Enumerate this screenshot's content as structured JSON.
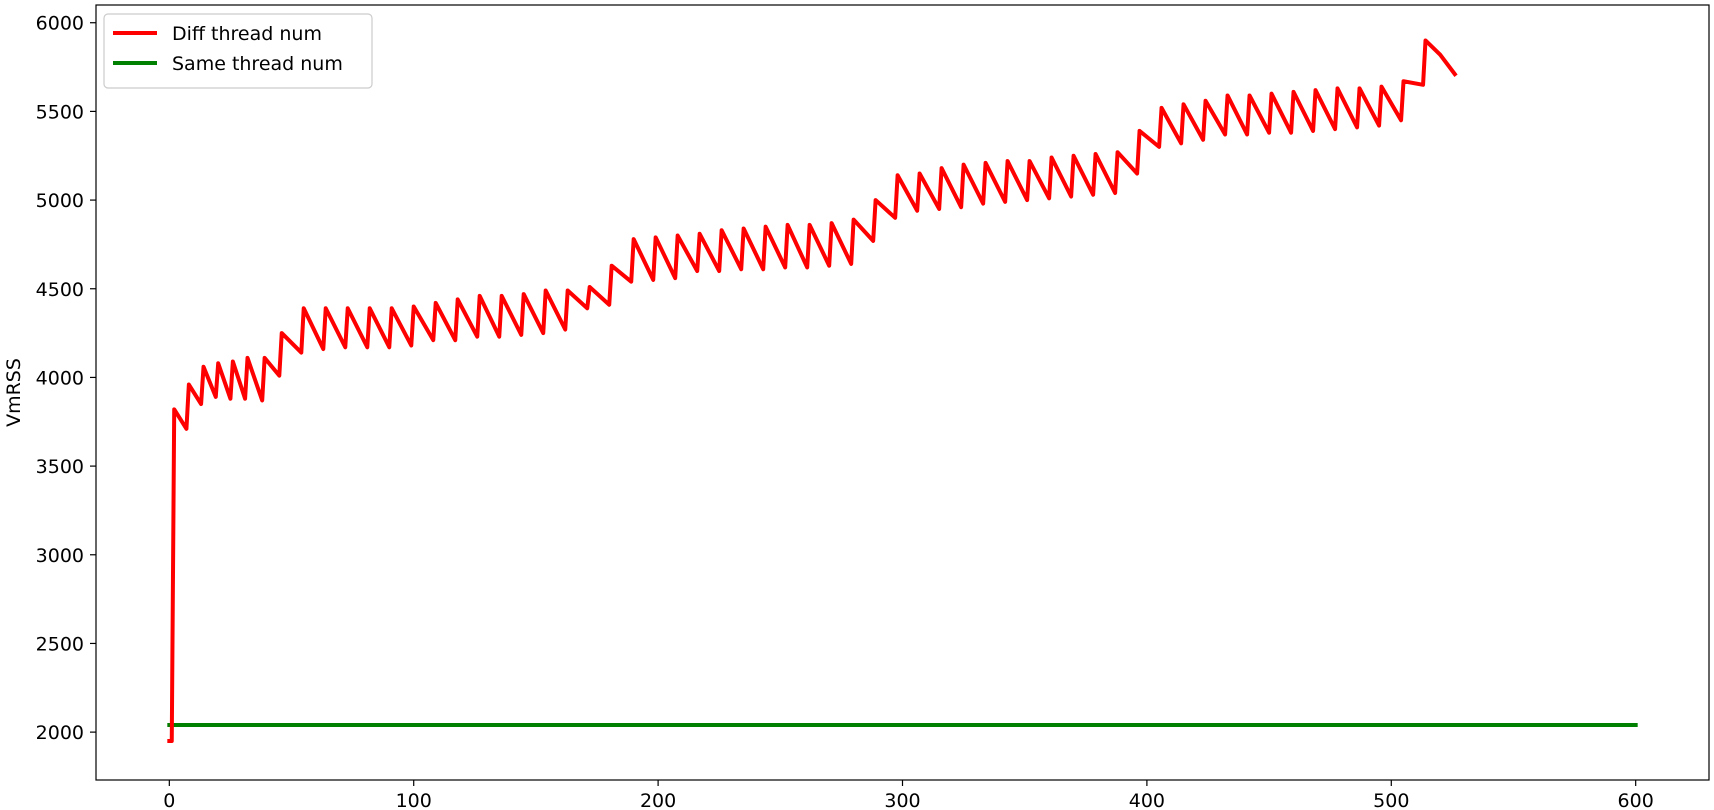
{
  "chart_data": {
    "type": "line",
    "title": "",
    "xlabel": "",
    "ylabel": "VmRSS",
    "xlim": [
      -30,
      630
    ],
    "ylim": [
      1730,
      6100
    ],
    "xticks": [
      0,
      100,
      200,
      300,
      400,
      500,
      600
    ],
    "yticks": [
      2000,
      2500,
      3000,
      3500,
      4000,
      4500,
      5000,
      5500,
      6000
    ],
    "grid": false,
    "legend_position": "top-left",
    "series": [
      {
        "name": "Diff thread num",
        "color": "#ff0000",
        "points": [
          [
            0,
            1950
          ],
          [
            1,
            1950
          ],
          [
            2,
            3820
          ],
          [
            7,
            3710
          ],
          [
            8,
            3960
          ],
          [
            13,
            3850
          ],
          [
            14,
            4060
          ],
          [
            19,
            3890
          ],
          [
            20,
            4080
          ],
          [
            25,
            3880
          ],
          [
            26,
            4090
          ],
          [
            31,
            3880
          ],
          [
            32,
            4110
          ],
          [
            38,
            3870
          ],
          [
            39,
            4110
          ],
          [
            45,
            4010
          ],
          [
            46,
            4250
          ],
          [
            54,
            4140
          ],
          [
            55,
            4390
          ],
          [
            63,
            4160
          ],
          [
            64,
            4390
          ],
          [
            72,
            4170
          ],
          [
            73,
            4390
          ],
          [
            81,
            4170
          ],
          [
            82,
            4390
          ],
          [
            90,
            4170
          ],
          [
            91,
            4390
          ],
          [
            99,
            4180
          ],
          [
            100,
            4400
          ],
          [
            108,
            4210
          ],
          [
            109,
            4420
          ],
          [
            117,
            4210
          ],
          [
            118,
            4440
          ],
          [
            126,
            4230
          ],
          [
            127,
            4460
          ],
          [
            135,
            4230
          ],
          [
            136,
            4460
          ],
          [
            144,
            4240
          ],
          [
            145,
            4470
          ],
          [
            153,
            4250
          ],
          [
            154,
            4490
          ],
          [
            162,
            4270
          ],
          [
            163,
            4490
          ],
          [
            171,
            4390
          ],
          [
            172,
            4510
          ],
          [
            180,
            4410
          ],
          [
            181,
            4630
          ],
          [
            189,
            4540
          ],
          [
            190,
            4780
          ],
          [
            198,
            4550
          ],
          [
            199,
            4790
          ],
          [
            207,
            4560
          ],
          [
            208,
            4800
          ],
          [
            216,
            4600
          ],
          [
            217,
            4810
          ],
          [
            225,
            4600
          ],
          [
            226,
            4830
          ],
          [
            234,
            4610
          ],
          [
            235,
            4840
          ],
          [
            243,
            4610
          ],
          [
            244,
            4850
          ],
          [
            252,
            4620
          ],
          [
            253,
            4860
          ],
          [
            261,
            4620
          ],
          [
            262,
            4860
          ],
          [
            270,
            4630
          ],
          [
            271,
            4870
          ],
          [
            279,
            4640
          ],
          [
            280,
            4890
          ],
          [
            288,
            4770
          ],
          [
            289,
            5000
          ],
          [
            297,
            4900
          ],
          [
            298,
            5140
          ],
          [
            306,
            4940
          ],
          [
            307,
            5150
          ],
          [
            315,
            4950
          ],
          [
            316,
            5180
          ],
          [
            324,
            4960
          ],
          [
            325,
            5200
          ],
          [
            333,
            4980
          ],
          [
            334,
            5210
          ],
          [
            342,
            4990
          ],
          [
            343,
            5220
          ],
          [
            351,
            5000
          ],
          [
            352,
            5220
          ],
          [
            360,
            5010
          ],
          [
            361,
            5240
          ],
          [
            369,
            5020
          ],
          [
            370,
            5250
          ],
          [
            378,
            5030
          ],
          [
            379,
            5260
          ],
          [
            387,
            5040
          ],
          [
            388,
            5270
          ],
          [
            396,
            5150
          ],
          [
            397,
            5390
          ],
          [
            405,
            5300
          ],
          [
            406,
            5520
          ],
          [
            414,
            5320
          ],
          [
            415,
            5540
          ],
          [
            423,
            5340
          ],
          [
            424,
            5560
          ],
          [
            432,
            5370
          ],
          [
            433,
            5590
          ],
          [
            441,
            5370
          ],
          [
            442,
            5590
          ],
          [
            450,
            5380
          ],
          [
            451,
            5600
          ],
          [
            459,
            5380
          ],
          [
            460,
            5610
          ],
          [
            468,
            5390
          ],
          [
            469,
            5620
          ],
          [
            477,
            5400
          ],
          [
            478,
            5630
          ],
          [
            486,
            5410
          ],
          [
            487,
            5630
          ],
          [
            495,
            5420
          ],
          [
            496,
            5640
          ],
          [
            504,
            5450
          ],
          [
            505,
            5670
          ],
          [
            513,
            5650
          ],
          [
            514,
            5900
          ],
          [
            520,
            5820
          ],
          [
            526,
            5710
          ]
        ]
      },
      {
        "name": "Same thread num",
        "color": "#008000",
        "points": [
          [
            0,
            2040
          ],
          [
            600,
            2040
          ]
        ]
      }
    ]
  }
}
